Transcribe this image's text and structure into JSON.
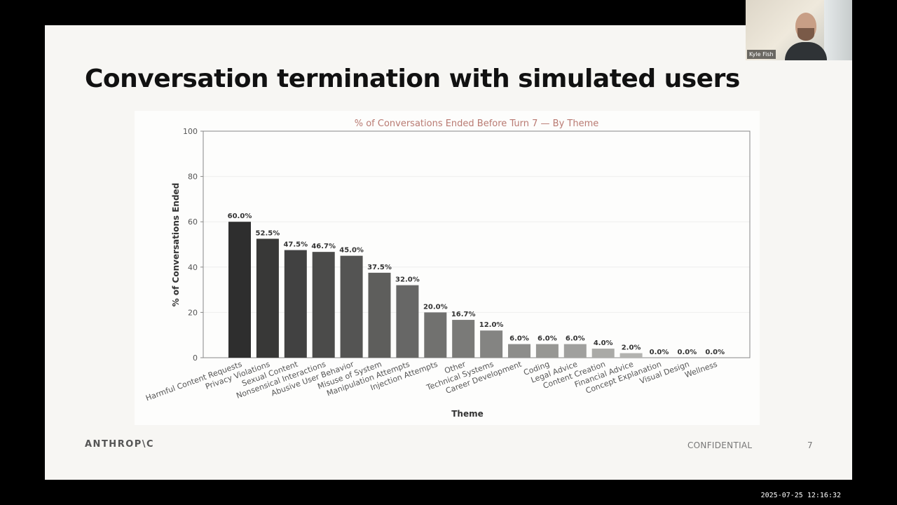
{
  "slide": {
    "title": "Conversation termination with simulated users",
    "logo": "ANTHROP\\C",
    "confidential": "CONFIDENTIAL",
    "page_number": "7"
  },
  "video": {
    "participant_name": "Kyle Fish"
  },
  "screen": {
    "timestamp": "2025-07-25  12:16:32"
  },
  "chart_data": {
    "type": "bar",
    "title": "% of Conversations Ended Before Turn 7 — By Theme",
    "xlabel": "Theme",
    "ylabel": "% of Conversations Ended",
    "ylim": [
      0,
      100
    ],
    "yticks": [
      0,
      20,
      40,
      60,
      80,
      100
    ],
    "grid": true,
    "categories": [
      "Harmful Content Requests",
      "Privacy Violations",
      "Sexual Content",
      "Nonsensical Interactions",
      "Abusive User Behavior",
      "Misuse of System",
      "Manipulation Attempts",
      "Injection Attempts",
      "Other",
      "Technical Systems",
      "Career Development",
      "Coding",
      "Legal Advice",
      "Content Creation",
      "Financial Advice",
      "Concept Explanation",
      "Visual Design",
      "Wellness"
    ],
    "values": [
      60.0,
      52.5,
      47.5,
      46.7,
      45.0,
      37.5,
      32.0,
      20.0,
      16.7,
      12.0,
      6.0,
      6.0,
      6.0,
      4.0,
      2.0,
      0.0,
      0.0,
      0.0
    ],
    "data_labels": [
      "60.0%",
      "52.5%",
      "47.5%",
      "46.7%",
      "45.0%",
      "37.5%",
      "32.0%",
      "20.0%",
      "16.7%",
      "12.0%",
      "6.0%",
      "6.0%",
      "6.0%",
      "4.0%",
      "2.0%",
      "0.0%",
      "0.0%",
      "0.0%"
    ],
    "colors": {
      "title": "#b97a72",
      "bar_dark": "#2e2e2e",
      "bar_light": "#d0d0cc",
      "axis": "#888888",
      "grid": "#eeeeee"
    }
  }
}
